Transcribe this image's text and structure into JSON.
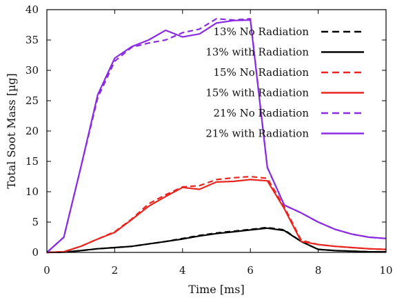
{
  "chart_data": {
    "type": "line",
    "xlabel": "Time [ms]",
    "ylabel": "Total Soot Mass [µg]",
    "xlim": [
      0,
      10
    ],
    "ylim": [
      0,
      40
    ],
    "xticks": [
      "0",
      "2",
      "4",
      "6",
      "8",
      "10"
    ],
    "yticks": [
      "0",
      "5",
      "10",
      "15",
      "20",
      "25",
      "30",
      "35",
      "40"
    ],
    "legend_placement": "top-right",
    "grid": false,
    "series": [
      {
        "name": "13% No Radiation",
        "color": "#000000",
        "dashed": true,
        "x": [
          0,
          0.5,
          1,
          1.5,
          2,
          2.5,
          3,
          3.5,
          4,
          4.5,
          5,
          5.5,
          6,
          6.5,
          7,
          7.5,
          8,
          8.5,
          9,
          9.5,
          10
        ],
        "y": [
          0,
          0.05,
          0.3,
          0.6,
          0.8,
          1.0,
          1.4,
          1.8,
          2.3,
          2.8,
          3.2,
          3.5,
          3.8,
          4.1,
          3.7,
          1.8,
          0.5,
          0.3,
          0.2,
          0.1,
          0.1
        ]
      },
      {
        "name": "13% with Radiation",
        "color": "#000000",
        "dashed": false,
        "x": [
          0,
          0.5,
          1,
          1.5,
          2,
          2.5,
          3,
          3.5,
          4,
          4.5,
          5,
          5.5,
          6,
          6.5,
          7,
          7.5,
          8,
          8.5,
          9,
          9.5,
          10
        ],
        "y": [
          0,
          0.05,
          0.3,
          0.6,
          0.8,
          1.0,
          1.4,
          1.8,
          2.2,
          2.7,
          3.1,
          3.4,
          3.7,
          4.0,
          3.6,
          1.8,
          0.5,
          0.3,
          0.2,
          0.1,
          0.1
        ]
      },
      {
        "name": "15% No Radiation",
        "color": "#e8251f",
        "dashed": true,
        "x": [
          0,
          0.5,
          1,
          1.5,
          2,
          2.5,
          3,
          3.5,
          4,
          4.5,
          5,
          5.5,
          6,
          6.5,
          7,
          7.5,
          8,
          8.5,
          9,
          9.5,
          10
        ],
        "y": [
          0,
          0.1,
          1.0,
          2.2,
          3.4,
          5.5,
          8.0,
          9.5,
          10.8,
          11.0,
          12.0,
          12.3,
          12.5,
          12.2,
          7.5,
          2.0,
          1.3,
          1.0,
          0.8,
          0.6,
          0.5
        ]
      },
      {
        "name": "15% with Radiation",
        "color": "#e8251f",
        "dashed": false,
        "x": [
          0,
          0.5,
          1,
          1.5,
          2,
          2.5,
          3,
          3.5,
          4,
          4.5,
          5,
          5.5,
          6,
          6.5,
          7,
          7.5,
          8,
          8.5,
          9,
          9.5,
          10
        ],
        "y": [
          0,
          0.1,
          1.0,
          2.2,
          3.3,
          5.4,
          7.6,
          9.2,
          10.7,
          10.4,
          11.6,
          11.7,
          12.0,
          11.8,
          7.2,
          1.8,
          1.3,
          1.0,
          0.8,
          0.6,
          0.5
        ]
      },
      {
        "name": "21% No Radiation",
        "color": "#8a2be2",
        "dashed": true,
        "x": [
          0,
          0.5,
          1,
          1.5,
          2,
          2.5,
          3,
          3.5,
          4,
          4.5,
          5,
          5.5,
          6,
          6.5,
          7,
          7.5,
          8,
          8.5,
          9,
          9.5,
          10
        ],
        "y": [
          0,
          2.5,
          14.0,
          25.5,
          31.5,
          33.8,
          34.5,
          35.0,
          36.2,
          36.8,
          38.5,
          38.3,
          38.5,
          14.0,
          7.8,
          6.5,
          5.0,
          3.8,
          3.0,
          2.5,
          2.3
        ]
      },
      {
        "name": "21% with Radiation",
        "color": "#8a2be2",
        "dashed": false,
        "x": [
          0,
          0.5,
          1,
          1.5,
          2,
          2.5,
          3,
          3.5,
          4,
          4.5,
          5,
          5.5,
          6,
          6.5,
          7,
          7.5,
          8,
          8.5,
          9,
          9.5,
          10
        ],
        "y": [
          0,
          2.5,
          14.0,
          26.0,
          32.0,
          33.9,
          35.0,
          36.6,
          35.5,
          36.0,
          37.8,
          38.2,
          38.3,
          14.0,
          7.8,
          6.5,
          5.0,
          3.8,
          3.0,
          2.5,
          2.3
        ]
      }
    ]
  }
}
